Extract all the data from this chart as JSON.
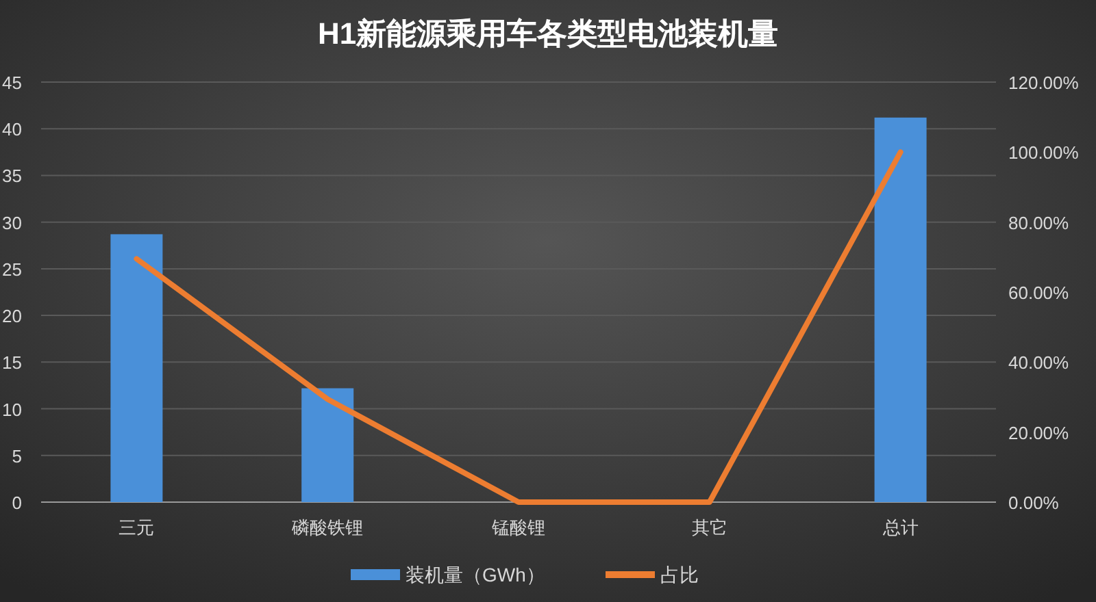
{
  "chart_data": {
    "type": "bar",
    "title": "H1新能源乘用车各类型电池装机量",
    "categories": [
      "三元",
      "磷酸铁锂",
      "锰酸锂",
      "其它",
      "总计"
    ],
    "series": [
      {
        "name": "装机量（GWh）",
        "color": "#4a90d9",
        "values": [
          28.7,
          12.2,
          0,
          0,
          41.2
        ]
      },
      {
        "name": "占比",
        "type": "line",
        "axis": "y2",
        "color": "#ed7d31",
        "values": [
          69.5,
          29.4,
          0,
          0,
          100
        ]
      }
    ],
    "ylim": [
      0,
      45
    ],
    "yticks": [
      0,
      5,
      10,
      15,
      20,
      25,
      30,
      35,
      40,
      45
    ],
    "y2lim": [
      0,
      120
    ],
    "y2ticks": [
      {
        "value": 0,
        "label": "0.00%"
      },
      {
        "value": 20,
        "label": "20.00%"
      },
      {
        "value": 40,
        "label": "40.00%"
      },
      {
        "value": 60,
        "label": "60.00%"
      },
      {
        "value": 80,
        "label": "80.00%"
      },
      {
        "value": 100,
        "label": "100.00%"
      },
      {
        "value": 120,
        "label": "120.00%"
      }
    ],
    "grid": "y",
    "legend": "bottom",
    "marker": "none",
    "line_style": "solid"
  }
}
